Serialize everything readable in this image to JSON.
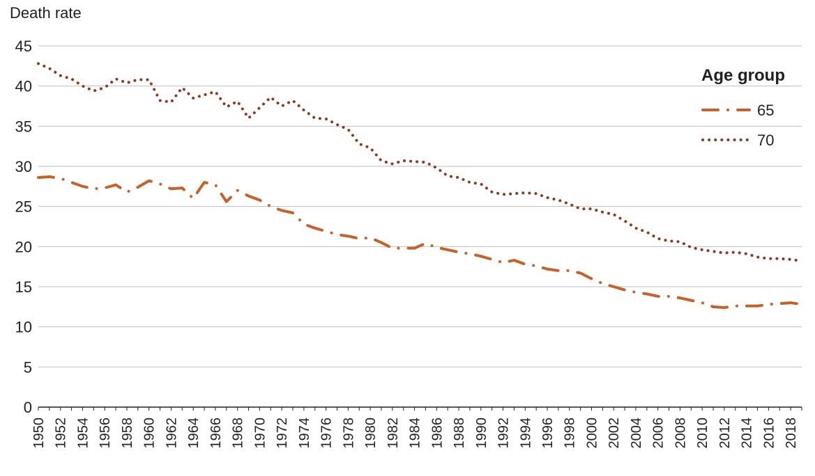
{
  "chart_data": {
    "type": "line",
    "title": "",
    "xlabel": "",
    "ylabel": "Death rate",
    "xlim": [
      1950,
      2019
    ],
    "ylim": [
      0,
      45
    ],
    "yticks": [
      0,
      5,
      10,
      15,
      20,
      25,
      30,
      35,
      40,
      45
    ],
    "xticks": [
      1950,
      1952,
      1954,
      1956,
      1958,
      1960,
      1962,
      1964,
      1966,
      1968,
      1970,
      1972,
      1974,
      1976,
      1978,
      1980,
      1982,
      1984,
      1986,
      1988,
      1990,
      1992,
      1994,
      1996,
      1998,
      2000,
      2002,
      2004,
      2006,
      2008,
      2010,
      2012,
      2014,
      2016,
      2018
    ],
    "grid": true,
    "legend": {
      "title": "Age group",
      "placement": "top-right"
    },
    "x": [
      1950,
      1951,
      1952,
      1953,
      1954,
      1955,
      1956,
      1957,
      1958,
      1959,
      1960,
      1961,
      1962,
      1963,
      1964,
      1965,
      1966,
      1967,
      1968,
      1969,
      1970,
      1971,
      1972,
      1973,
      1974,
      1975,
      1976,
      1977,
      1978,
      1979,
      1980,
      1981,
      1982,
      1983,
      1984,
      1985,
      1986,
      1987,
      1988,
      1989,
      1990,
      1991,
      1992,
      1993,
      1994,
      1995,
      1996,
      1997,
      1998,
      1999,
      2000,
      2001,
      2002,
      2003,
      2004,
      2005,
      2006,
      2007,
      2008,
      2009,
      2010,
      2011,
      2012,
      2013,
      2014,
      2015,
      2016,
      2017,
      2018,
      2019
    ],
    "series": [
      {
        "name": "65",
        "color": "#c8602a",
        "style": "dash-dot",
        "values": [
          28.6,
          28.7,
          28.5,
          28.0,
          27.5,
          27.2,
          27.3,
          27.7,
          26.8,
          27.4,
          28.2,
          27.8,
          27.2,
          27.3,
          26.0,
          28.0,
          27.7,
          25.6,
          27.0,
          26.3,
          25.8,
          25.0,
          24.5,
          24.2,
          22.8,
          22.3,
          21.9,
          21.5,
          21.3,
          21.0,
          21.1,
          20.5,
          19.8,
          19.8,
          19.8,
          20.4,
          19.9,
          19.6,
          19.3,
          19.1,
          18.8,
          18.4,
          18.0,
          18.3,
          17.8,
          17.6,
          17.2,
          17.0,
          17.0,
          16.7,
          16.0,
          15.4,
          15.0,
          14.6,
          14.3,
          14.1,
          13.8,
          13.8,
          13.6,
          13.3,
          13.0,
          12.5,
          12.4,
          12.6,
          12.6,
          12.6,
          12.8,
          12.9,
          13.0,
          12.8
        ]
      },
      {
        "name": "70",
        "color": "#8b3a1f",
        "style": "dotted",
        "values": [
          42.8,
          42.2,
          41.3,
          40.9,
          40.0,
          39.4,
          39.8,
          40.9,
          40.4,
          40.8,
          40.8,
          38.2,
          38.0,
          39.8,
          38.5,
          38.9,
          39.3,
          37.4,
          38.1,
          36.0,
          37.3,
          38.6,
          37.5,
          38.2,
          37.0,
          36.0,
          35.9,
          35.2,
          34.6,
          32.8,
          32.3,
          30.7,
          30.3,
          30.7,
          30.6,
          30.5,
          29.8,
          28.8,
          28.6,
          28.0,
          27.8,
          26.8,
          26.5,
          26.6,
          26.7,
          26.6,
          26.1,
          25.8,
          25.3,
          24.7,
          24.7,
          24.3,
          24.0,
          23.2,
          22.3,
          21.8,
          21.0,
          20.7,
          20.6,
          19.9,
          19.6,
          19.4,
          19.2,
          19.3,
          19.1,
          18.7,
          18.5,
          18.5,
          18.4,
          18.2
        ]
      }
    ]
  }
}
